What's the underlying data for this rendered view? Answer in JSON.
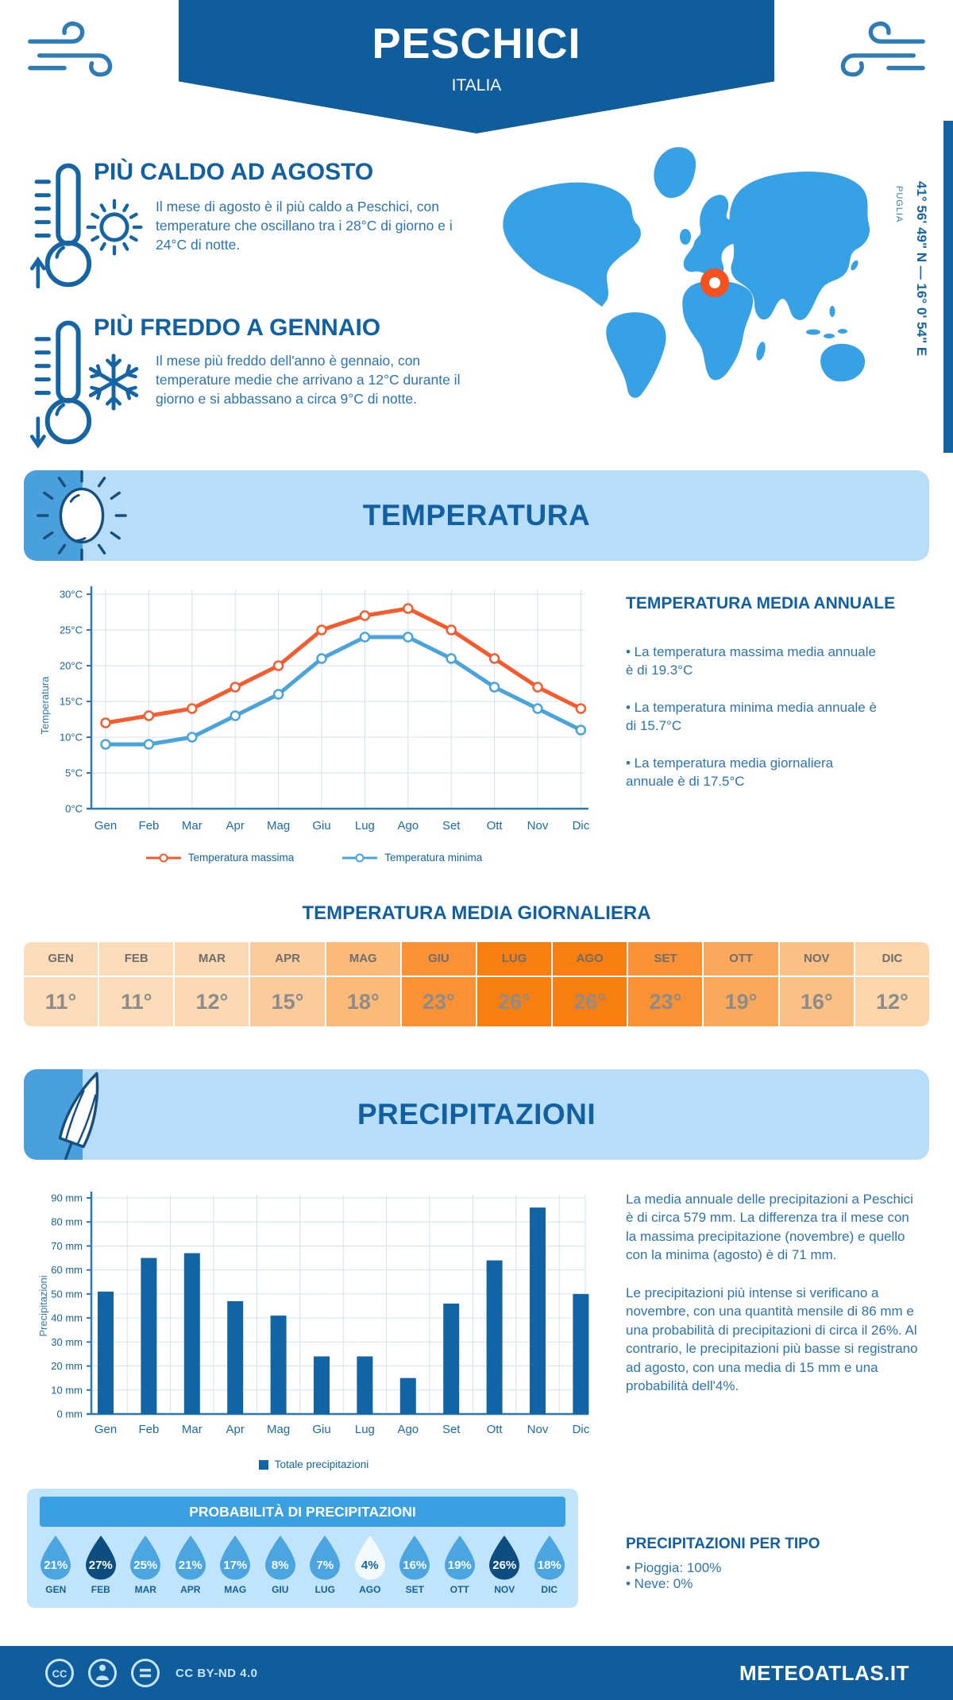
{
  "header": {
    "title": "PESCHICI",
    "subtitle": "ITALIA",
    "coordinates": "41° 56' 49\" N — 16° 0' 54\" E",
    "region": "PUGLIA"
  },
  "icons": {
    "wind": "wind-gust-icon",
    "thermometer_up": "thermometer-up-icon",
    "thermometer_down": "thermometer-down-icon",
    "sun": "sun-icon",
    "snowflake": "snowflake-icon",
    "umbrella": "umbrella-icon",
    "map_marker": "location-ring-icon",
    "cc": "creative-commons-icons"
  },
  "colors": {
    "brand_dark": "#0f5d9c",
    "heading": "#1060a2",
    "body_text": "#2b74af",
    "panel_light": "#b7ddf9",
    "accent_blue": "#3aa0e2",
    "map_blue": "#36a2e5",
    "marker_orange": "#f4511e",
    "max_line": "#f75b2d",
    "min_line": "#49a4de",
    "bar_blue": "#1165a4"
  },
  "highlights": [
    {
      "heading": "PIÙ CALDO AD AGOSTO",
      "text": "Il mese di agosto è il più caldo a Peschici, con temperature che oscillano tra i 28°C di giorno e i 24°C di notte."
    },
    {
      "heading": "PIÙ FREDDO A GENNAIO",
      "text": "Il mese più freddo dell'anno è gennaio, con temperature medie che arrivano a 12°C durante il giorno e si abbassano a circa 9°C di notte."
    }
  ],
  "temperature_section": {
    "banner_title": "TEMPERATURA",
    "annual": {
      "heading": "TEMPERATURA MEDIA ANNUALE",
      "bullets": [
        "• La temperatura massima media annuale è di 19.3°C",
        "• La temperatura minima media annuale è di 15.7°C",
        "• La temperatura media giornaliera annuale è di 17.5°C"
      ]
    },
    "daily_heading": "TEMPERATURA MEDIA GIORNALIERA",
    "monthly_table": {
      "months": [
        "GEN",
        "FEB",
        "MAR",
        "APR",
        "MAG",
        "GIU",
        "LUG",
        "AGO",
        "SET",
        "OTT",
        "NOV",
        "DIC"
      ],
      "values": [
        "11°",
        "11°",
        "12°",
        "15°",
        "18°",
        "23°",
        "26°",
        "26°",
        "23°",
        "19°",
        "16°",
        "12°"
      ],
      "cell_colors": [
        "#fcdcb8",
        "#fcdcb8",
        "#fcd9b2",
        "#fccb9c",
        "#fbba78",
        "#fa9134",
        "#f97e10",
        "#f97e10",
        "#fa9134",
        "#faa85c",
        "#fbc083",
        "#fcd5aa"
      ]
    }
  },
  "precipitation_section": {
    "banner_title": "PRECIPITAZIONI",
    "paragraphs": [
      "La media annuale delle precipitazioni a Peschici è di circa 579 mm. La differenza tra il mese con la massima precipitazione (novembre) e quello con la minima (agosto) è di 71 mm.",
      "Le precipitazioni più intense si verificano a novembre, con una quantità mensile di 86 mm e una probabilità di precipitazioni di circa il 26%. Al contrario, le precipitazioni più basse si registrano ad agosto, con una media di 15 mm e una probabilità dell'4%."
    ],
    "probability": {
      "title": "PROBABILITÀ DI PRECIPITAZIONI",
      "months": [
        "GEN",
        "FEB",
        "MAR",
        "APR",
        "MAG",
        "GIU",
        "LUG",
        "AGO",
        "SET",
        "OTT",
        "NOV",
        "DIC"
      ],
      "values": [
        "21%",
        "27%",
        "25%",
        "21%",
        "17%",
        "8%",
        "7%",
        "4%",
        "16%",
        "19%",
        "26%",
        "18%"
      ],
      "drop_colors": [
        "#4aa5e0",
        "#0d4d80",
        "#4aa5e0",
        "#4aa5e0",
        "#4aa5e0",
        "#4aa5e0",
        "#4aa5e0",
        "#f3fafe",
        "#4aa5e0",
        "#4aa5e0",
        "#0d4d80",
        "#4aa5e0"
      ],
      "value_colors": [
        "#ffffff",
        "#ffffff",
        "#ffffff",
        "#ffffff",
        "#ffffff",
        "#ffffff",
        "#ffffff",
        "#1464a3",
        "#ffffff",
        "#ffffff",
        "#ffffff",
        "#ffffff"
      ]
    },
    "per_type": {
      "heading": "PRECIPITAZIONI PER TIPO",
      "bullets": [
        "• Pioggia: 100%",
        "• Neve: 0%"
      ]
    }
  },
  "footer": {
    "license": "CC BY-ND 4.0",
    "brand": "METEOATLAS.IT"
  },
  "chart_data": [
    {
      "type": "line",
      "categories": [
        "Gen",
        "Feb",
        "Mar",
        "Apr",
        "Mag",
        "Giu",
        "Lug",
        "Ago",
        "Set",
        "Ott",
        "Nov",
        "Dic"
      ],
      "series": [
        {
          "name": "Temperatura massima",
          "color": "#f75b2d",
          "values": [
            12,
            13,
            14,
            17,
            20,
            25,
            27,
            28,
            25,
            21,
            17,
            14
          ]
        },
        {
          "name": "Temperatura minima",
          "color": "#49a4de",
          "values": [
            9,
            9,
            10,
            13,
            16,
            21,
            24,
            24,
            21,
            17,
            14,
            11
          ]
        }
      ],
      "title": "",
      "xlabel": "",
      "ylabel": "Temperatura",
      "ylim": [
        0,
        30
      ],
      "ytick_step": 5,
      "ytick_suffix": "°C",
      "grid": true,
      "legend_position": "bottom"
    },
    {
      "type": "bar",
      "categories": [
        "Gen",
        "Feb",
        "Mar",
        "Apr",
        "Mag",
        "Giu",
        "Lug",
        "Ago",
        "Set",
        "Ott",
        "Nov",
        "Dic"
      ],
      "values": [
        51,
        65,
        67,
        47,
        41,
        24,
        24,
        15,
        46,
        64,
        86,
        50
      ],
      "color": "#1165a4",
      "title": "",
      "xlabel": "",
      "ylabel": "Precipitazioni",
      "ylim": [
        0,
        90
      ],
      "ytick_step": 10,
      "ytick_suffix": " mm",
      "grid": true,
      "legend": "Totale precipitazioni"
    }
  ]
}
